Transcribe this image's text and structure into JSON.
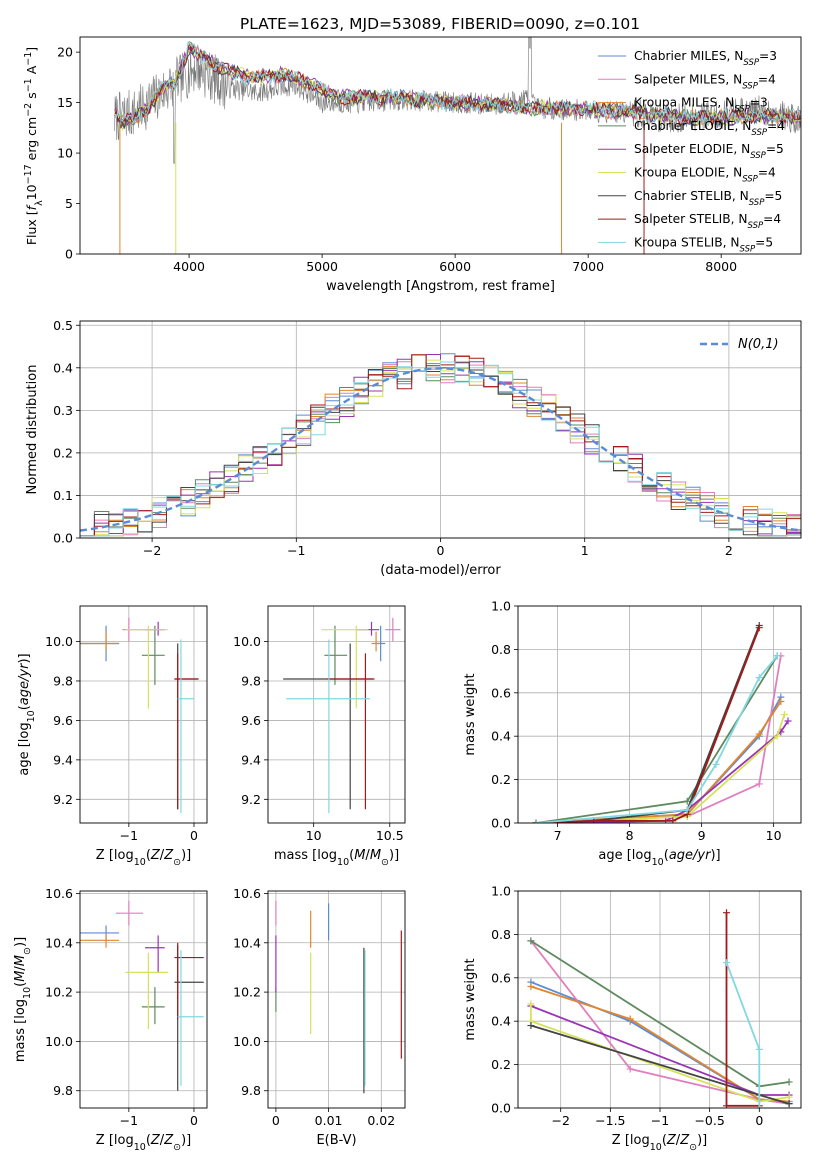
{
  "figure": {
    "title": "PLATE=1623, MJD=53089, FIBERID=0090, z=0.101"
  },
  "colors": {
    "Chabrier MILES": "#5b8bd6",
    "Salpeter MILES": "#e07fbf",
    "Kroupa MILES": "#e0862e",
    "Chabrier ELODIE": "#5e8a5e",
    "Salpeter ELODIE": "#9b33b5",
    "Kroupa ELODIE": "#d5e25a",
    "Chabrier STELIB": "#444444",
    "Salpeter STELIB": "#a31a1a",
    "Kroupa STELIB": "#82d8e0",
    "data": "#777777",
    "normal": "#5b8bd6",
    "grid": "#b0b0b0"
  },
  "chart_data": [
    {
      "id": "spectrum",
      "type": "line",
      "xlabel": "wavelength [Angstrom, rest frame]",
      "ylabel": "Flux [f_λ 10^-17 erg cm^-2 s^-1 A^-1]",
      "xlim": [
        3180,
        8600
      ],
      "ylim": [
        0,
        21.5
      ],
      "xticks": [
        4000,
        5000,
        6000,
        7000,
        8000
      ],
      "yticks": [
        0,
        5,
        10,
        15,
        20
      ],
      "grid": false,
      "legend_position": "top-right",
      "legend": [
        {
          "name": "Chabrier MILES",
          "nssp": "3"
        },
        {
          "name": "Salpeter MILES",
          "nssp": "4"
        },
        {
          "name": "Kroupa MILES",
          "nssp": "3"
        },
        {
          "name": "Chabrier ELODIE",
          "nssp": "4"
        },
        {
          "name": "Salpeter ELODIE",
          "nssp": "5"
        },
        {
          "name": "Kroupa ELODIE",
          "nssp": "4"
        },
        {
          "name": "Chabrier STELIB",
          "nssp": "5"
        },
        {
          "name": "Salpeter STELIB",
          "nssp": "4"
        },
        {
          "name": "Kroupa STELIB",
          "nssp": "5"
        }
      ],
      "data_envelope": {
        "x": [
          3440,
          3600,
          3800,
          3950,
          4050,
          4300,
          4500,
          4800,
          5000,
          5300,
          5600,
          6000,
          6300,
          6560,
          6600,
          7000,
          7300,
          7600,
          8000,
          8300,
          8600
        ],
        "y": [
          13.5,
          14.0,
          16.0,
          17.5,
          18.5,
          16.5,
          16.0,
          16.8,
          15.0,
          15.0,
          15.3,
          15.0,
          14.8,
          15.5,
          14.5,
          14.2,
          14.0,
          13.4,
          13.8,
          14.3,
          13.2
        ]
      },
      "model_envelope": {
        "x": [
          3440,
          3500,
          3600,
          3700,
          3800,
          3900,
          4000,
          4100,
          4300,
          4500,
          4700,
          4900,
          5100,
          5300,
          5500,
          5800,
          6000,
          6300,
          6600,
          6900,
          7200,
          7500,
          7800,
          8100,
          8400,
          8600
        ],
        "y": [
          14.2,
          13.0,
          13.5,
          14.5,
          16.5,
          17.0,
          20.5,
          19.5,
          18.0,
          17.5,
          17.8,
          17.0,
          15.6,
          15.5,
          15.6,
          15.2,
          15.0,
          14.8,
          14.4,
          14.5,
          14.2,
          13.8,
          13.5,
          13.6,
          13.7,
          13.5
        ]
      }
    },
    {
      "id": "residuals",
      "type": "histogram",
      "xlabel": "(data-model)/error",
      "ylabel": "Normed distribution",
      "xlim": [
        -2.5,
        2.5
      ],
      "ylim": [
        0,
        0.51
      ],
      "xticks": [
        -2,
        -1,
        0,
        1,
        2
      ],
      "yticks": [
        0.0,
        0.1,
        0.2,
        0.3,
        0.4,
        0.5
      ],
      "grid": true,
      "legend_position": "top-right",
      "normal_label": "N(0,1)",
      "bin_width": 0.1,
      "bin_start": -2.5
    },
    {
      "id": "age_vs_Z",
      "type": "errorbar",
      "xlabel": "Z [log10(Z/Z⊙)]",
      "ylabel": "age [log10(age/yr)]",
      "xlim": [
        -1.75,
        0.2
      ],
      "ylim": [
        9.08,
        10.18
      ],
      "xticks": [
        -1,
        0
      ],
      "yticks": [
        9.2,
        9.4,
        9.6,
        9.8,
        10.0
      ],
      "grid": true,
      "points": [
        {
          "model": "Chabrier MILES",
          "x": -1.35,
          "y": 9.99,
          "xerr": [
            0.42,
            0.2
          ],
          "yerr": [
            0.09,
            0.09
          ]
        },
        {
          "model": "Salpeter MILES",
          "x": -1.0,
          "y": 10.06,
          "xerr": [
            0.1,
            0.25
          ],
          "yerr": [
            0.06,
            0.06
          ]
        },
        {
          "model": "Kroupa MILES",
          "x": -1.35,
          "y": 9.99,
          "xerr": [
            0.42,
            0.2
          ],
          "yerr": [
            0.04,
            0.06
          ]
        },
        {
          "model": "Chabrier ELODIE",
          "x": -0.6,
          "y": 9.93,
          "xerr": [
            0.2,
            0.15
          ],
          "yerr": [
            0.15,
            0.15
          ]
        },
        {
          "model": "Salpeter ELODIE",
          "x": -0.55,
          "y": 10.06,
          "xerr": [
            0.2,
            0.1
          ],
          "yerr": [
            0.03,
            0.04
          ]
        },
        {
          "model": "Kroupa ELODIE",
          "x": -0.7,
          "y": 10.06,
          "xerr": [
            0.35,
            0.3
          ],
          "yerr": [
            0.4,
            0.02
          ]
        },
        {
          "model": "Chabrier STELIB",
          "x": -0.25,
          "y": 9.81,
          "xerr": [
            0.05,
            0.32
          ],
          "yerr": [
            0.66,
            0.18
          ]
        },
        {
          "model": "Salpeter STELIB",
          "x": -0.25,
          "y": 9.81,
          "xerr": [
            0.05,
            0.32
          ],
          "yerr": [
            0.66,
            0.13
          ]
        },
        {
          "model": "Kroupa STELIB",
          "x": -0.2,
          "y": 9.71,
          "xerr": [
            0.05,
            0.2
          ],
          "yerr": [
            0.58,
            0.3
          ]
        }
      ]
    },
    {
      "id": "age_vs_mass",
      "type": "errorbar",
      "xlabel": "mass [log10(M/M⊙)]",
      "ylabel": "",
      "xlim": [
        9.7,
        10.6
      ],
      "ylim": [
        9.08,
        10.18
      ],
      "xticks": [
        10.0,
        10.5
      ],
      "yticks": [
        9.2,
        9.4,
        9.6,
        9.8,
        10.0
      ],
      "grid": true,
      "points": [
        {
          "model": "Chabrier MILES",
          "x": 10.44,
          "y": 9.99,
          "xerr": [
            0.03,
            0.03
          ],
          "yerr": [
            0.09,
            0.09
          ]
        },
        {
          "model": "Salpeter MILES",
          "x": 10.52,
          "y": 10.06,
          "xerr": [
            0.05,
            0.05
          ],
          "yerr": [
            0.06,
            0.06
          ]
        },
        {
          "model": "Kroupa MILES",
          "x": 10.41,
          "y": 9.99,
          "xerr": [
            0.03,
            0.03
          ],
          "yerr": [
            0.04,
            0.06
          ]
        },
        {
          "model": "Chabrier ELODIE",
          "x": 10.14,
          "y": 9.93,
          "xerr": [
            0.07,
            0.08
          ],
          "yerr": [
            0.15,
            0.15
          ]
        },
        {
          "model": "Salpeter ELODIE",
          "x": 10.38,
          "y": 10.06,
          "xerr": [
            0.1,
            0.05
          ],
          "yerr": [
            0.03,
            0.04
          ]
        },
        {
          "model": "Kroupa ELODIE",
          "x": 10.28,
          "y": 10.06,
          "xerr": [
            0.23,
            0.08
          ],
          "yerr": [
            0.4,
            0.02
          ]
        },
        {
          "model": "Chabrier STELIB",
          "x": 10.24,
          "y": 9.81,
          "xerr": [
            0.44,
            0.15
          ],
          "yerr": [
            0.66,
            0.18
          ]
        },
        {
          "model": "Salpeter STELIB",
          "x": 10.34,
          "y": 9.81,
          "xerr": [
            0.25,
            0.06
          ],
          "yerr": [
            0.66,
            0.13
          ]
        },
        {
          "model": "Kroupa STELIB",
          "x": 10.1,
          "y": 9.71,
          "xerr": [
            0.28,
            0.27
          ],
          "yerr": [
            0.58,
            0.3
          ]
        }
      ]
    },
    {
      "id": "mass_weight_vs_age",
      "type": "line",
      "xlabel": "age [log10(age/yr)]",
      "ylabel": "mass weight",
      "xlim": [
        6.45,
        10.38
      ],
      "ylim": [
        0,
        1
      ],
      "xticks": [
        7,
        8,
        9,
        10
      ],
      "yticks": [
        0.0,
        0.2,
        0.4,
        0.6,
        0.8,
        1.0
      ],
      "grid": true,
      "series": [
        {
          "model": "Chabrier MILES",
          "x": [
            6.7,
            8.8,
            9.8,
            10.1
          ],
          "y": [
            0.0,
            0.04,
            0.4,
            0.58
          ]
        },
        {
          "model": "Salpeter MILES",
          "x": [
            6.7,
            8.8,
            9.8,
            10.1
          ],
          "y": [
            0.0,
            0.03,
            0.18,
            0.77
          ]
        },
        {
          "model": "Kroupa MILES",
          "x": [
            6.7,
            8.8,
            9.8,
            10.1
          ],
          "y": [
            0.0,
            0.04,
            0.41,
            0.56
          ]
        },
        {
          "model": "Chabrier ELODIE",
          "x": [
            6.7,
            8.8,
            10.05
          ],
          "y": [
            0.0,
            0.1,
            0.77
          ]
        },
        {
          "model": "Salpeter ELODIE",
          "x": [
            6.7,
            8.5,
            8.8,
            10.1,
            10.2
          ],
          "y": [
            0.0,
            0.01,
            0.06,
            0.42,
            0.47
          ]
        },
        {
          "model": "Kroupa ELODIE",
          "x": [
            6.7,
            8.8,
            10.05,
            10.15
          ],
          "y": [
            0.0,
            0.03,
            0.4,
            0.5
          ]
        },
        {
          "model": "Chabrier STELIB",
          "x": [
            6.7,
            7.5,
            8.8,
            9.8
          ],
          "y": [
            0.0,
            0.01,
            0.06,
            0.91
          ]
        },
        {
          "model": "Salpeter STELIB",
          "x": [
            6.7,
            7.5,
            8.6,
            8.8,
            9.8
          ],
          "y": [
            0.0,
            0.01,
            0.01,
            0.04,
            0.9
          ]
        },
        {
          "model": "Kroupa STELIB",
          "x": [
            6.7,
            8.8,
            9.2,
            9.8,
            10.05
          ],
          "y": [
            0.0,
            0.06,
            0.27,
            0.67,
            0.77
          ]
        }
      ]
    },
    {
      "id": "mass_vs_Z",
      "type": "errorbar",
      "xlabel": "Z [log10(Z/Z⊙)]",
      "ylabel": "mass [log10(M/M⊙)]",
      "xlim": [
        -1.75,
        0.2
      ],
      "ylim": [
        9.73,
        10.61
      ],
      "xticks": [
        -1,
        0
      ],
      "yticks": [
        9.8,
        10.0,
        10.2,
        10.4,
        10.6
      ],
      "grid": true,
      "points": [
        {
          "model": "Chabrier MILES",
          "x": -1.35,
          "y": 10.44,
          "xerr": [
            0.42,
            0.2
          ],
          "yerr": [
            0.03,
            0.03
          ]
        },
        {
          "model": "Salpeter MILES",
          "x": -1.0,
          "y": 10.52,
          "xerr": [
            0.2,
            0.22
          ],
          "yerr": [
            0.05,
            0.05
          ]
        },
        {
          "model": "Kroupa MILES",
          "x": -1.35,
          "y": 10.41,
          "xerr": [
            0.42,
            0.2
          ],
          "yerr": [
            0.03,
            0.03
          ]
        },
        {
          "model": "Chabrier ELODIE",
          "x": -0.6,
          "y": 10.14,
          "xerr": [
            0.2,
            0.15
          ],
          "yerr": [
            0.07,
            0.08
          ]
        },
        {
          "model": "Salpeter ELODIE",
          "x": -0.55,
          "y": 10.38,
          "xerr": [
            0.2,
            0.1
          ],
          "yerr": [
            0.1,
            0.05
          ]
        },
        {
          "model": "Kroupa ELODIE",
          "x": -0.7,
          "y": 10.28,
          "xerr": [
            0.35,
            0.3
          ],
          "yerr": [
            0.23,
            0.08
          ]
        },
        {
          "model": "Chabrier STELIB",
          "x": -0.25,
          "y": 10.24,
          "xerr": [
            0.05,
            0.4
          ],
          "yerr": [
            0.44,
            0.15
          ]
        },
        {
          "model": "Salpeter STELIB",
          "x": -0.25,
          "y": 10.34,
          "xerr": [
            0.05,
            0.4
          ],
          "yerr": [
            0.25,
            0.06
          ]
        },
        {
          "model": "Kroupa STELIB",
          "x": -0.2,
          "y": 10.1,
          "xerr": [
            0.05,
            0.35
          ],
          "yerr": [
            0.28,
            0.27
          ]
        }
      ]
    },
    {
      "id": "mass_vs_ebv",
      "type": "errorbar",
      "xlabel": "E(B-V)",
      "ylabel": "",
      "xlim": [
        -0.0015,
        0.0245
      ],
      "ylim": [
        9.73,
        10.61
      ],
      "xticks": [
        0.0,
        0.01,
        0.02
      ],
      "yticks": [
        9.8,
        10.0,
        10.2,
        10.4,
        10.6
      ],
      "grid": true,
      "points": [
        {
          "model": "Chabrier MILES",
          "x": 0.01,
          "y": 10.44,
          "xerr": [
            0,
            0
          ],
          "yerr": [
            0.03,
            0.12
          ]
        },
        {
          "model": "Salpeter MILES",
          "x": 0.0,
          "y": 10.52,
          "xerr": [
            0,
            0
          ],
          "yerr": [
            0.05,
            0.05
          ]
        },
        {
          "model": "Kroupa MILES",
          "x": 0.0066,
          "y": 10.41,
          "xerr": [
            0,
            0
          ],
          "yerr": [
            0.03,
            0.12
          ]
        },
        {
          "model": "Chabrier ELODIE",
          "x": 0.0,
          "y": 10.14,
          "xerr": [
            0,
            0
          ],
          "yerr": [
            0.02,
            0.08
          ]
        },
        {
          "model": "Salpeter ELODIE",
          "x": 0.0,
          "y": 10.38,
          "xerr": [
            0,
            0
          ],
          "yerr": [
            0.18,
            0.05
          ]
        },
        {
          "model": "Kroupa ELODIE",
          "x": 0.0066,
          "y": 10.28,
          "xerr": [
            0,
            0
          ],
          "yerr": [
            0.25,
            0.08
          ]
        },
        {
          "model": "Chabrier STELIB",
          "x": 0.0167,
          "y": 10.24,
          "xerr": [
            0,
            0
          ],
          "yerr": [
            0.45,
            0.14
          ]
        },
        {
          "model": "Salpeter STELIB",
          "x": 0.0238,
          "y": 10.34,
          "xerr": [
            0,
            0
          ],
          "yerr": [
            0.41,
            0.11
          ]
        },
        {
          "model": "Kroupa STELIB",
          "x": 0.0169,
          "y": 10.1,
          "xerr": [
            0,
            0
          ],
          "yerr": [
            0.28,
            0.27
          ]
        }
      ]
    },
    {
      "id": "mass_weight_vs_Z",
      "type": "line",
      "xlabel": "Z [log10(Z/Z⊙)]",
      "ylabel": "mass weight",
      "xlim": [
        -2.43,
        0.42
      ],
      "ylim": [
        0,
        1
      ],
      "xticks": [
        -2.0,
        -1.5,
        -1.0,
        -0.5,
        0.0
      ],
      "yticks": [
        0.0,
        0.2,
        0.4,
        0.6,
        0.8,
        1.0
      ],
      "grid": true,
      "series": [
        {
          "model": "Chabrier MILES",
          "x": [
            -2.3,
            -1.3,
            0.0,
            0.3
          ],
          "y": [
            0.58,
            0.4,
            0.04,
            0.02
          ]
        },
        {
          "model": "Salpeter MILES",
          "x": [
            -2.3,
            -1.3,
            0.0,
            0.3
          ],
          "y": [
            0.77,
            0.18,
            0.04,
            0.02
          ]
        },
        {
          "model": "Kroupa MILES",
          "x": [
            -2.3,
            -1.3,
            0.0,
            0.3
          ],
          "y": [
            0.56,
            0.41,
            0.04,
            0.03
          ]
        },
        {
          "model": "Chabrier ELODIE",
          "x": [
            -2.3,
            0.0,
            0.3
          ],
          "y": [
            0.77,
            0.1,
            0.12
          ]
        },
        {
          "model": "Salpeter ELODIE",
          "x": [
            -2.3,
            0.0,
            0.3
          ],
          "y": [
            0.47,
            0.06,
            0.06
          ]
        },
        {
          "model": "Kroupa ELODIE",
          "x": [
            -2.3,
            -2.3,
            0.0,
            0.3
          ],
          "y": [
            0.48,
            0.4,
            0.03,
            0.05
          ]
        },
        {
          "model": "Chabrier STELIB",
          "x": [
            -2.3,
            0.0,
            0.3
          ],
          "y": [
            0.38,
            0.06,
            0.02
          ]
        },
        {
          "model": "Salpeter STELIB",
          "x": [
            -0.33,
            -0.33,
            0.0
          ],
          "y": [
            0.9,
            0.01,
            0.01
          ]
        },
        {
          "model": "Kroupa STELIB",
          "x": [
            -0.33,
            0.0,
            0.0
          ],
          "y": [
            0.67,
            0.27,
            0.0
          ]
        }
      ]
    }
  ]
}
